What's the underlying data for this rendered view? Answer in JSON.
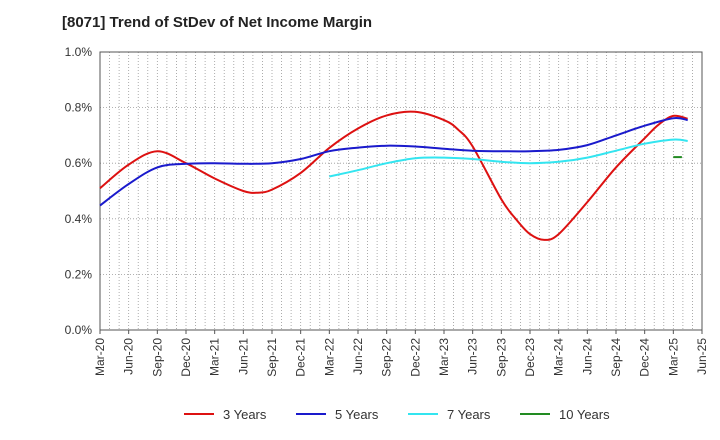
{
  "chart_data": {
    "type": "line",
    "title": "[8071]  Trend of StDev of Net Income Margin",
    "xlabel": "",
    "ylabel": "",
    "ylim": [
      0,
      1.0
    ],
    "y_ticks": [
      "0.0%",
      "0.2%",
      "0.4%",
      "0.6%",
      "0.8%",
      "1.0%"
    ],
    "x_ticks": [
      "Mar-20",
      "Jun-20",
      "Sep-20",
      "Dec-20",
      "Mar-21",
      "Jun-21",
      "Sep-21",
      "Dec-21",
      "Mar-22",
      "Jun-22",
      "Sep-22",
      "Dec-22",
      "Mar-23",
      "Jun-23",
      "Sep-23",
      "Dec-23",
      "Mar-24",
      "Jun-24",
      "Sep-24",
      "Dec-24",
      "Mar-25",
      "Jun-25"
    ],
    "grid": true,
    "legend_position": "bottom",
    "series": [
      {
        "name": "3 Years",
        "color": "#dd1111",
        "points": [
          [
            0,
            0.51
          ],
          [
            1,
            0.595
          ],
          [
            2,
            0.643
          ],
          [
            3,
            0.6
          ],
          [
            4,
            0.545
          ],
          [
            5,
            0.5
          ],
          [
            5.5,
            0.494
          ],
          [
            6,
            0.505
          ],
          [
            7,
            0.565
          ],
          [
            8,
            0.655
          ],
          [
            9,
            0.725
          ],
          [
            10,
            0.772
          ],
          [
            11,
            0.785
          ],
          [
            12,
            0.755
          ],
          [
            12.5,
            0.72
          ],
          [
            13,
            0.66
          ],
          [
            14,
            0.47
          ],
          [
            14.5,
            0.4
          ],
          [
            15,
            0.345
          ],
          [
            15.5,
            0.324
          ],
          [
            16,
            0.345
          ],
          [
            17,
            0.46
          ],
          [
            18,
            0.585
          ],
          [
            19,
            0.69
          ],
          [
            19.5,
            0.74
          ],
          [
            20,
            0.77
          ],
          [
            20.5,
            0.76
          ]
        ]
      },
      {
        "name": "5 Years",
        "color": "#1a1acc",
        "points": [
          [
            0,
            0.448
          ],
          [
            1,
            0.525
          ],
          [
            2,
            0.585
          ],
          [
            3,
            0.598
          ],
          [
            4,
            0.6
          ],
          [
            5,
            0.598
          ],
          [
            6,
            0.6
          ],
          [
            7,
            0.615
          ],
          [
            8,
            0.643
          ],
          [
            9,
            0.656
          ],
          [
            10,
            0.663
          ],
          [
            11,
            0.66
          ],
          [
            12,
            0.652
          ],
          [
            13,
            0.645
          ],
          [
            14,
            0.643
          ],
          [
            15,
            0.643
          ],
          [
            16,
            0.648
          ],
          [
            17,
            0.665
          ],
          [
            18,
            0.7
          ],
          [
            19,
            0.735
          ],
          [
            20,
            0.762
          ],
          [
            20.5,
            0.755
          ]
        ]
      },
      {
        "name": "7 Years",
        "color": "#33e5f0",
        "points": [
          [
            8,
            0.552
          ],
          [
            9,
            0.575
          ],
          [
            10,
            0.6
          ],
          [
            11,
            0.618
          ],
          [
            12,
            0.62
          ],
          [
            13,
            0.615
          ],
          [
            14,
            0.605
          ],
          [
            15,
            0.6
          ],
          [
            16,
            0.605
          ],
          [
            17,
            0.62
          ],
          [
            18,
            0.645
          ],
          [
            19,
            0.67
          ],
          [
            20,
            0.685
          ],
          [
            20.5,
            0.68
          ]
        ]
      },
      {
        "name": "10 Years",
        "color": "#228b22",
        "points": [
          [
            20,
            0.622
          ],
          [
            20.3,
            0.622
          ]
        ]
      }
    ]
  }
}
